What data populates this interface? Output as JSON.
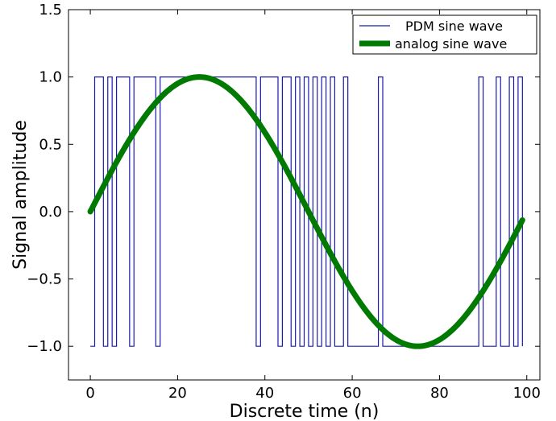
{
  "chart_data": {
    "type": "line",
    "title": "",
    "xlabel": "Discrete time (n)",
    "ylabel": "Signal amplitude",
    "xlim": [
      -5,
      103
    ],
    "ylim": [
      -1.25,
      1.5
    ],
    "x_ticks": [
      0,
      20,
      40,
      60,
      80,
      100
    ],
    "y_ticks": [
      -1.0,
      -0.5,
      0.0,
      0.5,
      1.0,
      1.5
    ],
    "x_tick_labels": [
      "0",
      "20",
      "40",
      "60",
      "80",
      "100"
    ],
    "y_tick_labels": [
      "−1.0",
      "−0.5",
      "0.0",
      "0.5",
      "1.0",
      "1.5"
    ],
    "grid": false,
    "legend_position": "top-right",
    "series": [
      {
        "name": "PDM sine wave",
        "style": "steps-post",
        "color": "#1a1ab0",
        "x": [
          0,
          1,
          2,
          3,
          4,
          5,
          6,
          7,
          8,
          9,
          10,
          11,
          12,
          13,
          14,
          15,
          16,
          17,
          18,
          19,
          20,
          21,
          22,
          23,
          24,
          25,
          26,
          27,
          28,
          29,
          30,
          31,
          32,
          33,
          34,
          35,
          36,
          37,
          38,
          39,
          40,
          41,
          42,
          43,
          44,
          45,
          46,
          47,
          48,
          49,
          50,
          51,
          52,
          53,
          54,
          55,
          56,
          57,
          58,
          59,
          60,
          61,
          62,
          63,
          64,
          65,
          66,
          67,
          68,
          69,
          70,
          71,
          72,
          73,
          74,
          75,
          76,
          77,
          78,
          79,
          80,
          81,
          82,
          83,
          84,
          85,
          86,
          87,
          88,
          89,
          90,
          91,
          92,
          93,
          94,
          95,
          96,
          97,
          98,
          99
        ],
        "values": [
          -1,
          1,
          1,
          -1,
          1,
          -1,
          1,
          1,
          1,
          -1,
          1,
          1,
          1,
          1,
          1,
          -1,
          1,
          1,
          1,
          1,
          1,
          1,
          1,
          1,
          1,
          1,
          1,
          1,
          1,
          1,
          1,
          1,
          1,
          1,
          1,
          1,
          1,
          1,
          -1,
          1,
          1,
          1,
          1,
          -1,
          1,
          1,
          -1,
          1,
          -1,
          1,
          -1,
          1,
          -1,
          1,
          -1,
          1,
          -1,
          -1,
          1,
          -1,
          -1,
          -1,
          -1,
          -1,
          -1,
          -1,
          1,
          -1,
          -1,
          -1,
          -1,
          -1,
          -1,
          -1,
          -1,
          -1,
          -1,
          -1,
          -1,
          -1,
          -1,
          -1,
          -1,
          -1,
          -1,
          -1,
          -1,
          -1,
          -1,
          1,
          -1,
          -1,
          -1,
          1,
          -1,
          -1,
          1,
          -1,
          1,
          -1
        ]
      },
      {
        "name": "analog sine wave",
        "style": "line",
        "color": "#007a00",
        "function": "sin(2*pi*n/100)",
        "n_range": [
          0,
          99
        ]
      }
    ]
  }
}
